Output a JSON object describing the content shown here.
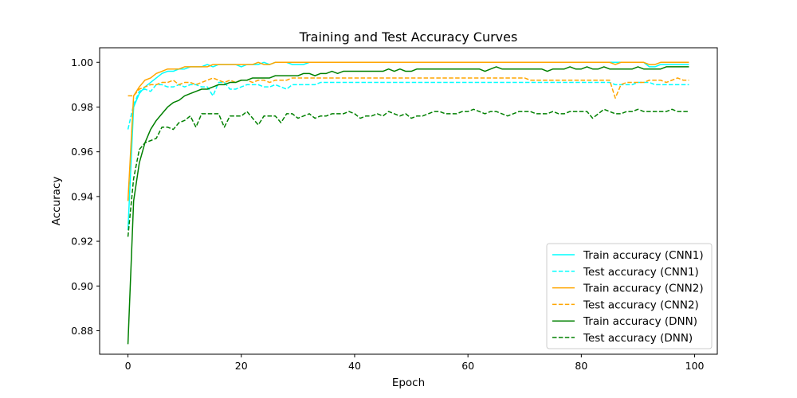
{
  "chart_data": {
    "type": "line",
    "title": "Training and Test Accuracy Curves",
    "xlabel": "Epoch",
    "ylabel": "Accuracy",
    "xlim": [
      -5,
      104
    ],
    "ylim": [
      0.8695,
      1.0065
    ],
    "x_ticks": [
      0,
      20,
      40,
      60,
      80,
      100
    ],
    "x_tick_labels": [
      "0",
      "20",
      "40",
      "60",
      "80",
      "100"
    ],
    "y_ticks": [
      0.88,
      0.9,
      0.92,
      0.94,
      0.96,
      0.98,
      1.0
    ],
    "y_tick_labels": [
      "0.88",
      "0.90",
      "0.92",
      "0.94",
      "0.96",
      "0.98",
      "1.00"
    ],
    "grid": false,
    "legend_position": "bottom-right",
    "series": [
      {
        "name": "Train accuracy (CNN1)",
        "color": "#00ffff",
        "dash": "solid",
        "values": [
          0.925,
          0.98,
          0.986,
          0.989,
          0.991,
          0.993,
          0.995,
          0.996,
          0.996,
          0.997,
          0.997,
          0.998,
          0.998,
          0.998,
          0.999,
          0.998,
          0.999,
          0.999,
          0.999,
          0.999,
          0.998,
          0.999,
          0.999,
          0.999,
          1.0,
          0.999,
          1.0,
          1.0,
          1.0,
          0.999,
          0.999,
          0.999,
          1.0,
          1.0,
          1.0,
          1.0,
          1.0,
          1.0,
          1.0,
          1.0,
          1.0,
          1.0,
          1.0,
          1.0,
          1.0,
          1.0,
          1.0,
          1.0,
          1.0,
          1.0,
          1.0,
          1.0,
          1.0,
          1.0,
          1.0,
          1.0,
          1.0,
          1.0,
          1.0,
          1.0,
          1.0,
          1.0,
          1.0,
          1.0,
          1.0,
          1.0,
          1.0,
          1.0,
          1.0,
          1.0,
          1.0,
          1.0,
          1.0,
          1.0,
          1.0,
          1.0,
          1.0,
          1.0,
          1.0,
          1.0,
          1.0,
          1.0,
          1.0,
          1.0,
          1.0,
          1.0,
          1.0,
          1.0,
          1.0,
          1.0,
          1.0,
          1.0,
          0.998,
          0.998,
          0.999,
          0.999,
          0.999,
          0.999,
          0.999,
          0.999
        ]
      },
      {
        "name": "Test accuracy (CNN1)",
        "color": "#00ffff",
        "dash": "dashed",
        "values": [
          0.97,
          0.981,
          0.987,
          0.988,
          0.987,
          0.99,
          0.99,
          0.989,
          0.989,
          0.99,
          0.989,
          0.99,
          0.99,
          0.989,
          0.989,
          0.985,
          0.991,
          0.991,
          0.988,
          0.988,
          0.989,
          0.99,
          0.99,
          0.99,
          0.989,
          0.989,
          0.99,
          0.989,
          0.988,
          0.99,
          0.99,
          0.99,
          0.99,
          0.99,
          0.991,
          0.991,
          0.991,
          0.991,
          0.991,
          0.991,
          0.991,
          0.991,
          0.991,
          0.991,
          0.991,
          0.991,
          0.991,
          0.991,
          0.991,
          0.991,
          0.991,
          0.991,
          0.991,
          0.991,
          0.991,
          0.991,
          0.991,
          0.991,
          0.991,
          0.991,
          0.991,
          0.991,
          0.991,
          0.991,
          0.991,
          0.991,
          0.991,
          0.991,
          0.991,
          0.991,
          0.991,
          0.991,
          0.991,
          0.991,
          0.991,
          0.991,
          0.991,
          0.991,
          0.991,
          0.991,
          0.991,
          0.991,
          0.991,
          0.991,
          0.991,
          0.991,
          0.99,
          0.99,
          0.99,
          0.99,
          0.991,
          0.991,
          0.991,
          0.99,
          0.99,
          0.99,
          0.99,
          0.99,
          0.99,
          0.99
        ]
      },
      {
        "name": "Train accuracy (CNN2)",
        "color": "#ffa500",
        "dash": "solid",
        "values": [
          0.938,
          0.985,
          0.989,
          0.992,
          0.993,
          0.995,
          0.996,
          0.997,
          0.997,
          0.997,
          0.998,
          0.998,
          0.998,
          0.998,
          0.998,
          0.999,
          0.999,
          0.999,
          0.999,
          0.999,
          0.999,
          0.999,
          0.999,
          1.0,
          0.999,
          0.999,
          1.0,
          1.0,
          1.0,
          1.0,
          1.0,
          1.0,
          1.0,
          1.0,
          1.0,
          1.0,
          1.0,
          1.0,
          1.0,
          1.0,
          1.0,
          1.0,
          1.0,
          1.0,
          1.0,
          1.0,
          1.0,
          1.0,
          1.0,
          1.0,
          1.0,
          1.0,
          1.0,
          1.0,
          1.0,
          1.0,
          1.0,
          1.0,
          1.0,
          1.0,
          1.0,
          1.0,
          1.0,
          1.0,
          1.0,
          1.0,
          1.0,
          1.0,
          1.0,
          1.0,
          1.0,
          1.0,
          1.0,
          1.0,
          1.0,
          1.0,
          1.0,
          1.0,
          1.0,
          1.0,
          1.0,
          1.0,
          1.0,
          1.0,
          1.0,
          1.0,
          0.999,
          1.0,
          1.0,
          1.0,
          1.0,
          1.0,
          0.999,
          0.999,
          1.0,
          1.0,
          1.0,
          1.0,
          1.0,
          1.0
        ]
      },
      {
        "name": "Test accuracy (CNN2)",
        "color": "#ffa500",
        "dash": "dashed",
        "values": [
          0.985,
          0.985,
          0.988,
          0.989,
          0.99,
          0.99,
          0.991,
          0.991,
          0.992,
          0.99,
          0.991,
          0.991,
          0.99,
          0.991,
          0.992,
          0.993,
          0.992,
          0.991,
          0.992,
          0.991,
          0.992,
          0.992,
          0.991,
          0.992,
          0.992,
          0.991,
          0.992,
          0.992,
          0.992,
          0.993,
          0.993,
          0.993,
          0.993,
          0.993,
          0.993,
          0.993,
          0.993,
          0.993,
          0.993,
          0.993,
          0.993,
          0.993,
          0.993,
          0.993,
          0.993,
          0.993,
          0.993,
          0.993,
          0.993,
          0.993,
          0.993,
          0.993,
          0.993,
          0.993,
          0.993,
          0.993,
          0.993,
          0.993,
          0.993,
          0.993,
          0.993,
          0.993,
          0.993,
          0.993,
          0.993,
          0.993,
          0.993,
          0.993,
          0.993,
          0.993,
          0.993,
          0.992,
          0.992,
          0.992,
          0.992,
          0.992,
          0.992,
          0.992,
          0.992,
          0.992,
          0.992,
          0.992,
          0.992,
          0.992,
          0.992,
          0.992,
          0.984,
          0.99,
          0.991,
          0.991,
          0.991,
          0.991,
          0.992,
          0.992,
          0.992,
          0.991,
          0.992,
          0.993,
          0.992,
          0.992
        ]
      },
      {
        "name": "Train accuracy (DNN)",
        "color": "#008000",
        "dash": "solid",
        "values": [
          0.874,
          0.938,
          0.955,
          0.964,
          0.97,
          0.974,
          0.977,
          0.98,
          0.982,
          0.983,
          0.985,
          0.986,
          0.987,
          0.988,
          0.988,
          0.989,
          0.99,
          0.99,
          0.991,
          0.991,
          0.992,
          0.992,
          0.993,
          0.993,
          0.993,
          0.993,
          0.994,
          0.994,
          0.994,
          0.994,
          0.994,
          0.995,
          0.995,
          0.994,
          0.995,
          0.995,
          0.996,
          0.995,
          0.996,
          0.996,
          0.996,
          0.996,
          0.996,
          0.996,
          0.996,
          0.996,
          0.997,
          0.996,
          0.997,
          0.996,
          0.996,
          0.997,
          0.997,
          0.997,
          0.997,
          0.997,
          0.997,
          0.997,
          0.997,
          0.997,
          0.997,
          0.997,
          0.997,
          0.996,
          0.997,
          0.998,
          0.997,
          0.997,
          0.997,
          0.997,
          0.997,
          0.997,
          0.997,
          0.997,
          0.996,
          0.997,
          0.997,
          0.997,
          0.998,
          0.997,
          0.997,
          0.998,
          0.997,
          0.997,
          0.998,
          0.997,
          0.997,
          0.997,
          0.997,
          0.997,
          0.998,
          0.997,
          0.997,
          0.997,
          0.997,
          0.998,
          0.998,
          0.998,
          0.998,
          0.998
        ]
      },
      {
        "name": "Test accuracy (DNN)",
        "color": "#008000",
        "dash": "dashed",
        "values": [
          0.922,
          0.948,
          0.961,
          0.964,
          0.965,
          0.966,
          0.971,
          0.971,
          0.97,
          0.973,
          0.974,
          0.976,
          0.971,
          0.977,
          0.977,
          0.977,
          0.977,
          0.971,
          0.976,
          0.976,
          0.976,
          0.978,
          0.975,
          0.972,
          0.976,
          0.976,
          0.976,
          0.973,
          0.977,
          0.977,
          0.975,
          0.976,
          0.977,
          0.975,
          0.976,
          0.976,
          0.977,
          0.977,
          0.977,
          0.978,
          0.977,
          0.975,
          0.976,
          0.976,
          0.977,
          0.976,
          0.978,
          0.977,
          0.976,
          0.977,
          0.975,
          0.976,
          0.976,
          0.977,
          0.978,
          0.978,
          0.977,
          0.977,
          0.977,
          0.978,
          0.978,
          0.979,
          0.978,
          0.977,
          0.978,
          0.978,
          0.977,
          0.976,
          0.977,
          0.978,
          0.978,
          0.978,
          0.977,
          0.977,
          0.977,
          0.978,
          0.977,
          0.977,
          0.978,
          0.978,
          0.978,
          0.978,
          0.975,
          0.977,
          0.979,
          0.978,
          0.977,
          0.977,
          0.978,
          0.978,
          0.979,
          0.978,
          0.978,
          0.978,
          0.978,
          0.978,
          0.979,
          0.978,
          0.978,
          0.978
        ]
      }
    ]
  }
}
